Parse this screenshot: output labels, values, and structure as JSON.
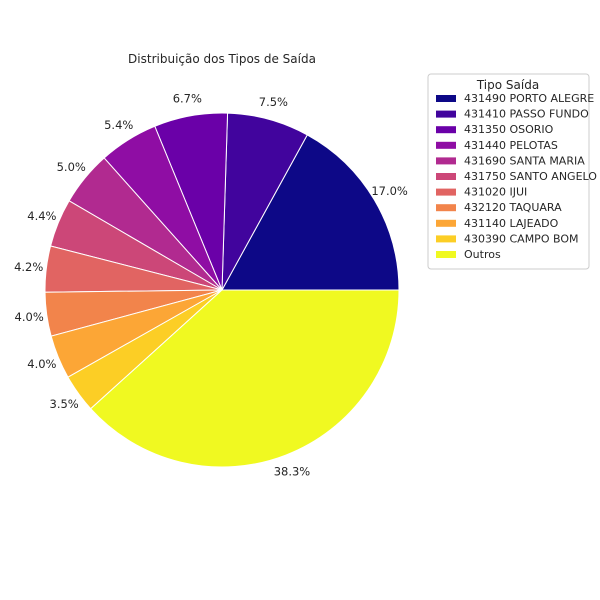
{
  "chart_data": {
    "type": "pie",
    "title": "Distribuição dos Tipos de Saída",
    "legend_title": "Tipo Saída",
    "legend_position": "top-right",
    "slices": [
      {
        "label": "431490 PORTO ALEGRE",
        "value": 17.0,
        "pct_label": "17.0%",
        "color": "#0d0887"
      },
      {
        "label": "431410 PASSO FUNDO",
        "value": 7.5,
        "pct_label": "7.5%",
        "color": "#41049d"
      },
      {
        "label": "431350 OSORIO",
        "value": 6.7,
        "pct_label": "6.7%",
        "color": "#6a00a8"
      },
      {
        "label": "431440 PELOTAS",
        "value": 5.4,
        "pct_label": "5.4%",
        "color": "#8f0da4"
      },
      {
        "label": "431690 SANTA MARIA",
        "value": 5.0,
        "pct_label": "5.0%",
        "color": "#b12a90"
      },
      {
        "label": "431750 SANTO ANGELO",
        "value": 4.4,
        "pct_label": "4.4%",
        "color": "#cc4778"
      },
      {
        "label": "431020 IJUI",
        "value": 4.2,
        "pct_label": "4.2%",
        "color": "#e16462"
      },
      {
        "label": "432120 TAQUARA",
        "value": 4.0,
        "pct_label": "4.0%",
        "color": "#f2844b"
      },
      {
        "label": "431140 LAJEADO",
        "value": 4.0,
        "pct_label": "4.0%",
        "color": "#fca636"
      },
      {
        "label": "430390 CAMPO BOM",
        "value": 3.5,
        "pct_label": "3.5%",
        "color": "#fcce25"
      },
      {
        "label": "Outros",
        "value": 38.3,
        "pct_label": "38.3%",
        "color": "#f0f921"
      }
    ]
  }
}
